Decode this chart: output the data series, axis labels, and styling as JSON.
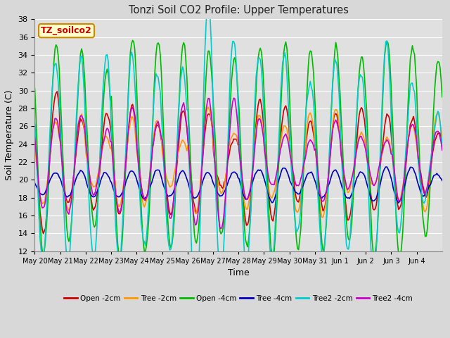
{
  "title": "Tonzi Soil CO2 Profile: Upper Temperatures",
  "xlabel": "Time",
  "ylabel": "Soil Temperature (C)",
  "ylim": [
    12,
    38
  ],
  "yticks": [
    12,
    14,
    16,
    18,
    20,
    22,
    24,
    26,
    28,
    30,
    32,
    34,
    36,
    38
  ],
  "xtick_labels": [
    "May 20",
    "May 21",
    "May 22",
    "May 23",
    "May 24",
    "May 25",
    "May 26",
    "May 27",
    "May 28",
    "May 29",
    "May 30",
    "May 31",
    "Jun 1",
    "Jun 2",
    "Jun 3",
    "Jun 4"
  ],
  "label_box_text": "TZ_soilco2",
  "label_box_facecolor": "#ffffcc",
  "label_box_edgecolor": "#cc8800",
  "label_box_textcolor": "#cc0000",
  "series": [
    {
      "label": "Open -2cm",
      "color": "#cc0000",
      "lw": 1.2
    },
    {
      "label": "Tree -2cm",
      "color": "#ff9900",
      "lw": 1.2
    },
    {
      "label": "Open -4cm",
      "color": "#00bb00",
      "lw": 1.2
    },
    {
      "label": "Tree -4cm",
      "color": "#0000bb",
      "lw": 1.2
    },
    {
      "label": "Tree2 -2cm",
      "color": "#00cccc",
      "lw": 1.2
    },
    {
      "label": "Tree2 -4cm",
      "color": "#cc00cc",
      "lw": 1.2
    }
  ],
  "fig_bg_color": "#d8d8d8",
  "plot_bg_color": "#e0e0e0",
  "grid_color": "#ffffff"
}
